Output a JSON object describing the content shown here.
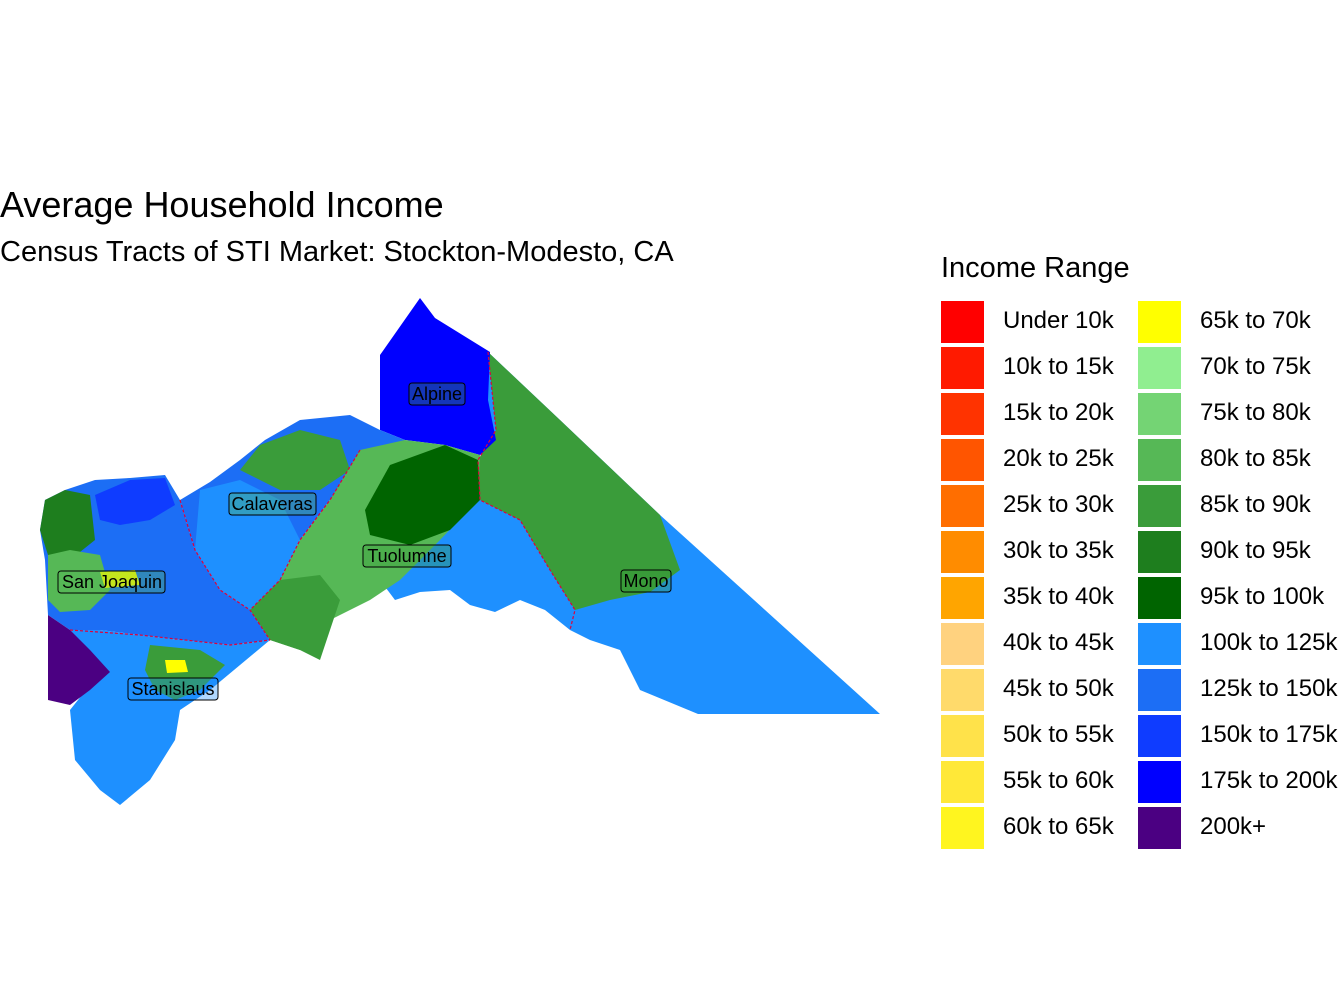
{
  "title": "Average Household Income",
  "subtitle": "Census Tracts of STI Market: Stockton-Modesto, CA",
  "legend": {
    "title": "Income Range",
    "items": [
      {
        "label": "Under 10k",
        "color": "#ff0000"
      },
      {
        "label": "10k to 15k",
        "color": "#ff1a00"
      },
      {
        "label": "15k to 20k",
        "color": "#ff3300"
      },
      {
        "label": "20k to 25k",
        "color": "#ff5500"
      },
      {
        "label": "25k to 30k",
        "color": "#ff6e00"
      },
      {
        "label": "30k to 35k",
        "color": "#ff8c00"
      },
      {
        "label": "35k to 40k",
        "color": "#ffa500"
      },
      {
        "label": "40k to 45k",
        "color": "#ffd27f"
      },
      {
        "label": "45k to 50k",
        "color": "#ffda6b"
      },
      {
        "label": "50k to 55k",
        "color": "#ffe24a"
      },
      {
        "label": "55k to 60k",
        "color": "#ffe838"
      },
      {
        "label": "60k to 65k",
        "color": "#fff51f"
      },
      {
        "label": "65k to 70k",
        "color": "#ffff00"
      },
      {
        "label": "70k to 75k",
        "color": "#90ee90"
      },
      {
        "label": "75k to 80k",
        "color": "#74d474"
      },
      {
        "label": "80k to 85k",
        "color": "#56b856"
      },
      {
        "label": "85k to 90k",
        "color": "#3a9c3a"
      },
      {
        "label": "90k to 95k",
        "color": "#1e7e1e"
      },
      {
        "label": "95k to 100k",
        "color": "#006400"
      },
      {
        "label": "100k to 125k",
        "color": "#1e90ff"
      },
      {
        "label": "125k to 150k",
        "color": "#1c6ef5"
      },
      {
        "label": "150k to 175k",
        "color": "#0f3cff"
      },
      {
        "label": "175k to 200k",
        "color": "#0000ff"
      },
      {
        "label": "200k+",
        "color": "#4b0082"
      }
    ]
  },
  "counties": [
    {
      "name": "Alpine"
    },
    {
      "name": "Calaveras"
    },
    {
      "name": "Tuolumne"
    },
    {
      "name": "San Joaquin"
    },
    {
      "name": "Mono"
    },
    {
      "name": "Stanislaus"
    }
  ]
}
